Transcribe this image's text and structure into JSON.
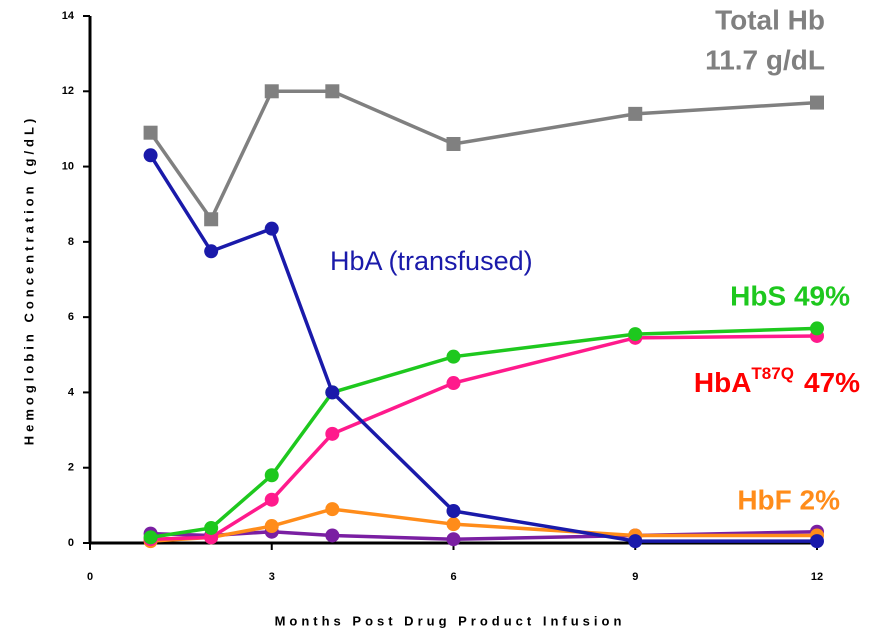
{
  "chart_data": {
    "type": "line",
    "xlabel": "Months Post Drug Product Infusion",
    "ylabel": "Hemoglobin Concentration (g/dL)",
    "x": [
      1,
      2,
      3,
      4,
      6,
      9,
      12
    ],
    "xlim": [
      0,
      12
    ],
    "xticks": [
      0,
      3,
      6,
      9,
      12
    ],
    "ylim": [
      0,
      14
    ],
    "yticks": [
      0,
      2,
      4,
      6,
      8,
      10,
      12,
      14
    ],
    "series": [
      {
        "color": "#7a1fa2",
        "marker": "circle",
        "values": [
          0.25,
          0.2,
          0.3,
          0.2,
          0.1,
          0.2,
          0.3
        ]
      },
      {
        "name": "HbF 2%",
        "color": "#ff8c1a",
        "marker": "circle",
        "values": [
          0.05,
          0.15,
          0.45,
          0.9,
          0.5,
          0.2,
          0.2
        ]
      },
      {
        "name_parts": [
          "HbA",
          "T87Q",
          "47%"
        ],
        "color": "#ff1a8c",
        "label_color": "#ff0000",
        "marker": "circle",
        "values": [
          0.1,
          0.15,
          1.15,
          2.9,
          4.25,
          5.45,
          5.5
        ]
      },
      {
        "name": "HbS 49%",
        "color": "#1ec81e",
        "marker": "circle",
        "values": [
          0.15,
          0.4,
          1.8,
          4.0,
          4.95,
          5.55,
          5.7
        ]
      },
      {
        "name": "HbA (transfused)",
        "color": "#1a1aaa",
        "marker": "circle",
        "values": [
          10.3,
          7.75,
          8.35,
          4.0,
          0.85,
          0.05,
          0.05
        ]
      },
      {
        "name": "Total Hb",
        "label": "11.7 g/dL",
        "color": "#808080",
        "marker": "square",
        "values": [
          10.9,
          8.6,
          12.0,
          12.0,
          10.6,
          11.4,
          11.7
        ]
      }
    ]
  }
}
